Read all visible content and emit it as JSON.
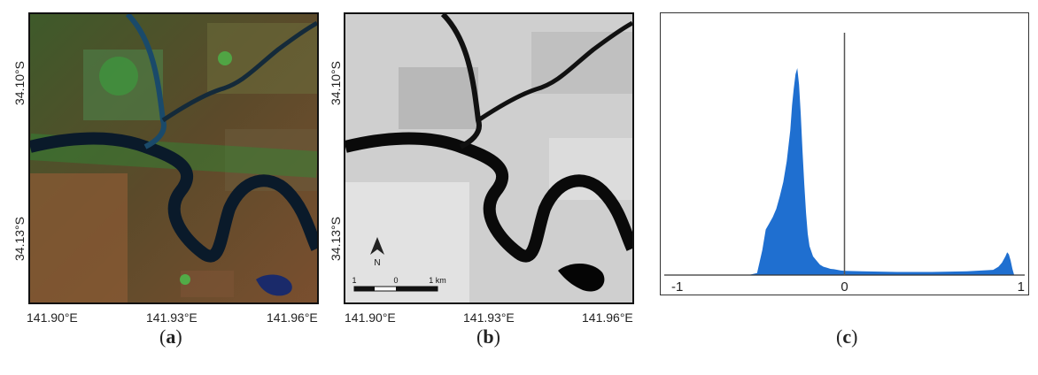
{
  "figure": {
    "panels": [
      {
        "id": "a",
        "caption_letter": "a",
        "lat_labels": [
          "34.10°S",
          "34.13°S"
        ],
        "lon_labels": [
          "141.90°E",
          "141.93°E",
          "141.96°E"
        ],
        "image_type": "false-colour satellite image"
      },
      {
        "id": "b",
        "caption_letter": "b",
        "lat_labels": [
          "34.10°S",
          "34.13°S"
        ],
        "lon_labels": [
          "141.90°E",
          "141.93°E",
          "141.96°E"
        ],
        "image_type": "grayscale index image",
        "north_arrow_label": "N",
        "scale_bar": {
          "labels": [
            "1",
            "0",
            "1 km"
          ]
        }
      },
      {
        "id": "c",
        "caption_letter": "c"
      }
    ]
  },
  "chart_data": {
    "type": "area",
    "title": "",
    "xlabel": "",
    "ylabel": "",
    "xlim": [
      -1,
      1
    ],
    "tick_labels": [
      "-1",
      "0",
      "1"
    ],
    "vertical_line_x": 0,
    "series": [
      {
        "color": "#1f6fd0",
        "x": [
          -0.55,
          -0.5,
          -0.47,
          -0.45,
          -0.43,
          -0.41,
          -0.39,
          -0.37,
          -0.35,
          -0.33,
          -0.31,
          -0.3,
          -0.29,
          -0.28,
          -0.27,
          -0.26,
          -0.25,
          -0.24,
          -0.23,
          -0.22,
          -0.21,
          -0.2,
          -0.18,
          -0.16,
          -0.14,
          -0.12,
          -0.1,
          -0.08,
          -0.06,
          -0.04,
          -0.02,
          0.0,
          0.1,
          0.3,
          0.5,
          0.7,
          0.85,
          0.88,
          0.9,
          0.92,
          0.93,
          0.94,
          0.95,
          0.96,
          0.97
        ],
        "y": [
          0,
          0.01,
          0.12,
          0.22,
          0.25,
          0.28,
          0.32,
          0.38,
          0.45,
          0.55,
          0.7,
          0.82,
          0.9,
          0.97,
          1.0,
          0.92,
          0.78,
          0.6,
          0.44,
          0.3,
          0.2,
          0.14,
          0.09,
          0.07,
          0.05,
          0.04,
          0.035,
          0.03,
          0.028,
          0.025,
          0.022,
          0.02,
          0.018,
          0.015,
          0.015,
          0.018,
          0.025,
          0.04,
          0.06,
          0.09,
          0.11,
          0.1,
          0.07,
          0.03,
          0
        ]
      }
    ]
  }
}
